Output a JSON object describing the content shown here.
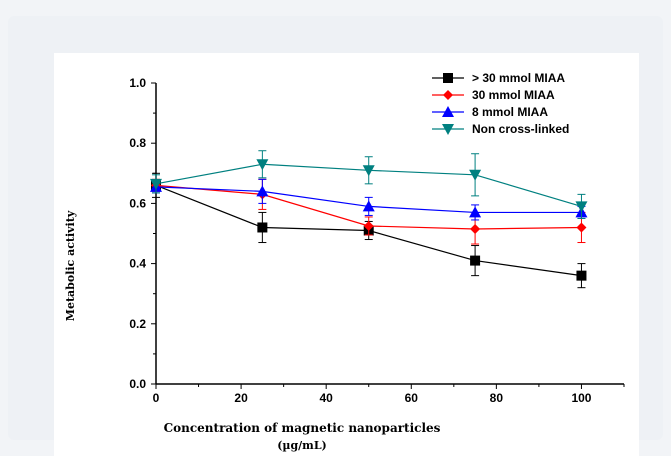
{
  "chart_data": {
    "type": "line",
    "xlabel": "Concentration of magnetic nanoparticles",
    "xlabel_unit": "(µg/mL)",
    "ylabel": "Metabolic activity",
    "xlim": [
      0,
      110
    ],
    "ylim": [
      0.0,
      1.0
    ],
    "x_ticks": [
      "0",
      "20",
      "40",
      "60",
      "80",
      "100"
    ],
    "y_ticks": [
      "0.0",
      "0.2",
      "0.4",
      "0.6",
      "0.8",
      "1.0"
    ],
    "legend_position": "top-right",
    "grid": false,
    "series": [
      {
        "name": "> 30 mmol MIAA",
        "color": "#000000",
        "marker": "square",
        "x": [
          0,
          25,
          50,
          75,
          100
        ],
        "values": [
          0.66,
          0.52,
          0.51,
          0.41,
          0.36
        ],
        "errors": [
          0.04,
          0.05,
          0.03,
          0.05,
          0.04
        ]
      },
      {
        "name": "30 mmol MIAA",
        "color": "#ff0000",
        "marker": "diamond",
        "x": [
          0,
          25,
          50,
          75,
          100
        ],
        "values": [
          0.66,
          0.63,
          0.525,
          0.515,
          0.52
        ],
        "errors": [
          0.02,
          0.05,
          0.03,
          0.05,
          0.05
        ]
      },
      {
        "name": "8 mmol MIAA",
        "color": "#0000ff",
        "marker": "triangle-up",
        "x": [
          0,
          25,
          50,
          75,
          100
        ],
        "values": [
          0.655,
          0.64,
          0.59,
          0.57,
          0.57
        ],
        "errors": [
          0.02,
          0.04,
          0.03,
          0.025,
          0.02
        ]
      },
      {
        "name": "Non cross-linked",
        "color": "#008080",
        "marker": "triangle-down",
        "x": [
          0,
          25,
          50,
          75,
          100
        ],
        "values": [
          0.665,
          0.73,
          0.71,
          0.695,
          0.59
        ],
        "errors": [
          0.03,
          0.045,
          0.045,
          0.07,
          0.04
        ]
      }
    ]
  }
}
